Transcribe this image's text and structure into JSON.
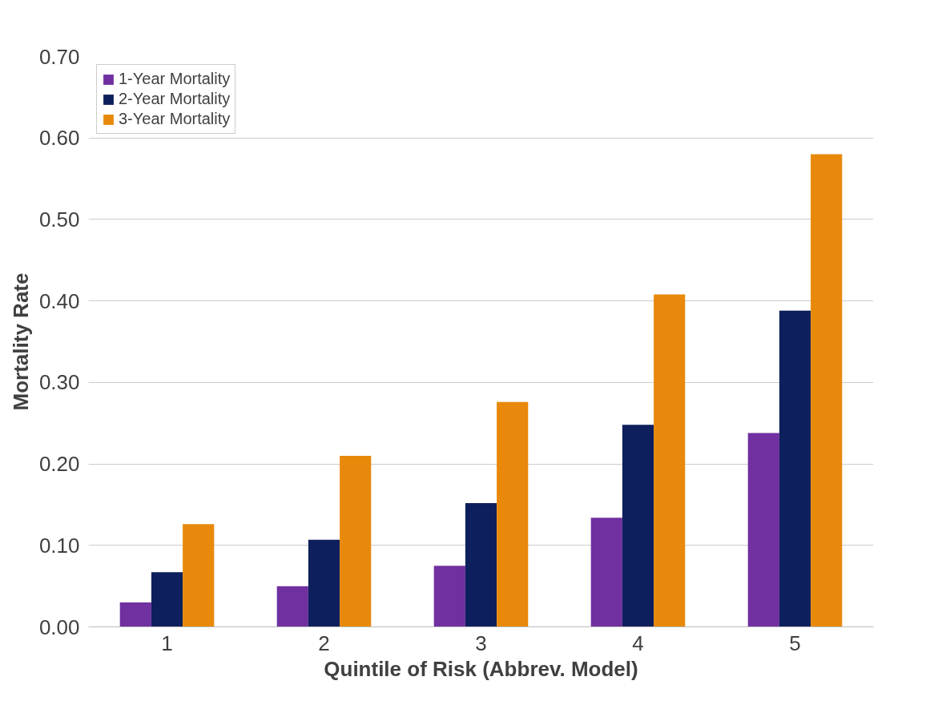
{
  "chart_data": {
    "type": "bar",
    "xlabel": "Quintile of Risk (Abbrev. Model)",
    "ylabel": "Mortality Rate",
    "categories": [
      "1",
      "2",
      "3",
      "4",
      "5"
    ],
    "series": [
      {
        "name": "1-Year Mortality",
        "color": "#7030a0",
        "values": [
          0.03,
          0.05,
          0.075,
          0.134,
          0.238
        ]
      },
      {
        "name": "2-Year Mortality",
        "color": "#0d1f5c",
        "values": [
          0.067,
          0.107,
          0.152,
          0.248,
          0.388
        ]
      },
      {
        "name": "3-Year Mortality",
        "color": "#e8890c",
        "values": [
          0.126,
          0.21,
          0.276,
          0.408,
          0.58
        ]
      }
    ],
    "ylim": [
      0,
      0.7
    ],
    "yticks": [
      {
        "value": 0,
        "label": "0.00"
      },
      {
        "value": 0.1,
        "label": "0.10"
      },
      {
        "value": 0.2,
        "label": "0.20"
      },
      {
        "value": 0.3,
        "label": "0.30"
      },
      {
        "value": 0.4,
        "label": "0.40"
      },
      {
        "value": 0.5,
        "label": "0.50"
      },
      {
        "value": 0.6,
        "label": "0.60"
      },
      {
        "value": 0.7,
        "label": "0.70"
      }
    ],
    "grid": "y",
    "legend": "top left"
  }
}
